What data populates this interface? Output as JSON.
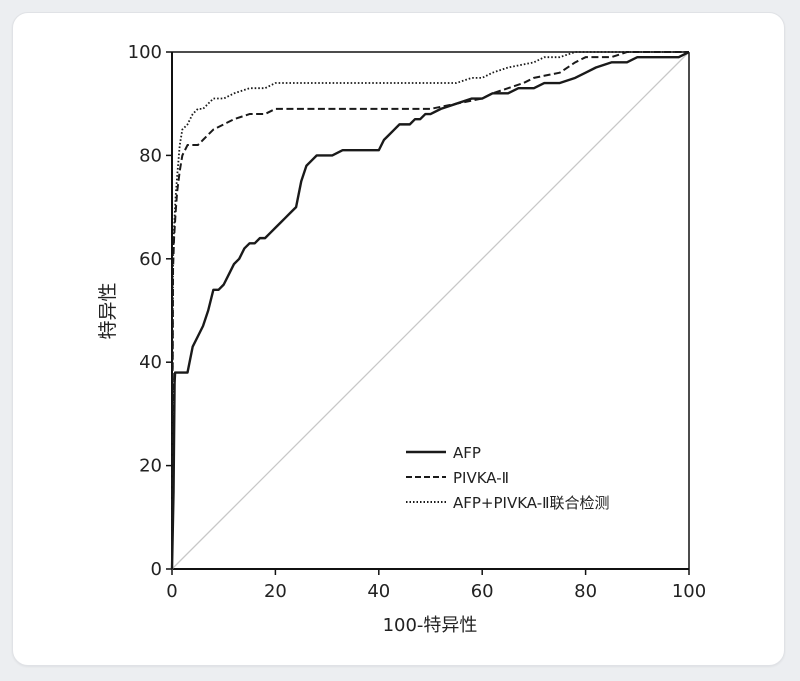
{
  "chart_data": {
    "type": "line",
    "title": "",
    "xlabel": "100-特异性",
    "ylabel": "特异性",
    "xlim": [
      0,
      100
    ],
    "ylim": [
      0,
      100
    ],
    "xticks": [
      "0",
      "20",
      "40",
      "60",
      "80",
      "100"
    ],
    "yticks": [
      "0",
      "20",
      "40",
      "60",
      "80",
      "100"
    ],
    "grid": false,
    "legend_position": "lower-right",
    "colors": {
      "line": "#1a1a1a",
      "reference": "#c8c8c8",
      "axis": "#111111"
    },
    "reference_line": {
      "x": [
        0,
        100
      ],
      "y": [
        0,
        100
      ]
    },
    "series": [
      {
        "name": "AFP",
        "style": "solid",
        "x": [
          0,
          0.3,
          0.5,
          0.6,
          1,
          2,
          3,
          4,
          5,
          6,
          7,
          8,
          9,
          10,
          11,
          12,
          13,
          14,
          15,
          16,
          17,
          18,
          19,
          20,
          21,
          22,
          23,
          24,
          25,
          26,
          27,
          28,
          29,
          30,
          31,
          33,
          35,
          37,
          40,
          41,
          42,
          43,
          44,
          45,
          46,
          47,
          48,
          49,
          50,
          52,
          55,
          58,
          60,
          62,
          65,
          67,
          70,
          72,
          75,
          78,
          80,
          82,
          85,
          88,
          90,
          93,
          95,
          98,
          100
        ],
        "y": [
          0,
          15,
          36,
          38,
          38,
          38,
          38,
          43,
          45,
          47,
          50,
          54,
          54,
          55,
          57,
          59,
          60,
          62,
          63,
          63,
          64,
          64,
          65,
          66,
          67,
          68,
          69,
          70,
          75,
          78,
          79,
          80,
          80,
          80,
          80,
          81,
          81,
          81,
          81,
          83,
          84,
          85,
          86,
          86,
          86,
          87,
          87,
          88,
          88,
          89,
          90,
          91,
          91,
          92,
          92,
          93,
          93,
          94,
          94,
          95,
          96,
          97,
          98,
          98,
          99,
          99,
          99,
          99,
          100
        ]
      },
      {
        "name": "PIVKA-Ⅱ",
        "style": "dashed",
        "x": [
          0,
          0.2,
          0.4,
          0.7,
          1,
          1.5,
          2,
          3,
          5,
          6,
          7,
          8,
          10,
          12,
          15,
          18,
          20,
          25,
          30,
          35,
          40,
          45,
          50,
          55,
          60,
          62,
          65,
          68,
          70,
          75,
          78,
          80,
          82,
          85,
          88,
          90,
          95,
          100
        ],
        "y": [
          0,
          58,
          64,
          69,
          73,
          77,
          80,
          82,
          82,
          83,
          84,
          85,
          86,
          87,
          88,
          88,
          89,
          89,
          89,
          89,
          89,
          89,
          89,
          90,
          91,
          92,
          93,
          94,
          95,
          96,
          98,
          99,
          99,
          99,
          100,
          100,
          100,
          100
        ]
      },
      {
        "name": "AFP+PIVKA-Ⅱ联合检测",
        "style": "dotted",
        "x": [
          0,
          0.2,
          0.4,
          0.7,
          1,
          1.5,
          2,
          3,
          4,
          5,
          6,
          7,
          8,
          10,
          12,
          15,
          18,
          20,
          25,
          30,
          35,
          40,
          45,
          50,
          55,
          58,
          60,
          62,
          65,
          70,
          72,
          75,
          78,
          80,
          85,
          90,
          100
        ],
        "y": [
          0,
          60,
          66,
          72,
          76,
          82,
          85,
          86,
          88,
          89,
          89,
          90,
          91,
          91,
          92,
          93,
          93,
          94,
          94,
          94,
          94,
          94,
          94,
          94,
          94,
          95,
          95,
          96,
          97,
          98,
          99,
          99,
          100,
          100,
          100,
          100,
          100
        ]
      }
    ]
  }
}
